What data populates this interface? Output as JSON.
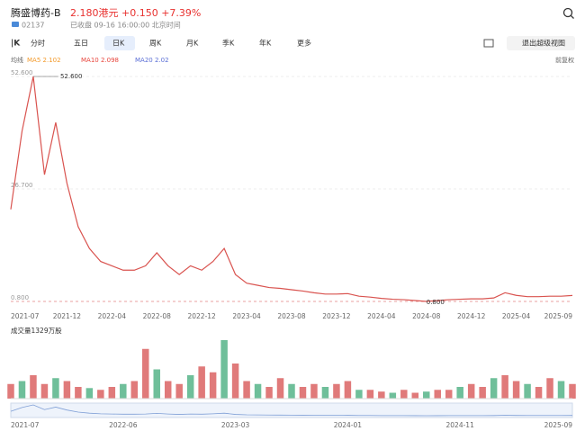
{
  "header": {
    "name": "腾盛博药-B",
    "quote": "2.180港元 +0.150 +7.39%",
    "code": "02137",
    "status": "已收盘 09-16 16:00:00 北京时间"
  },
  "tabs": [
    "分时",
    "五日",
    "日K",
    "周K",
    "月K",
    "季K",
    "年K",
    "更多"
  ],
  "exit_view": "退出超级视图",
  "ma_legend": {
    "label": "均线",
    "items": [
      {
        "text": "MA5 2.102",
        "color": "#f39a2b"
      },
      {
        "text": "MA10 2.098",
        "color": "#e8453c"
      },
      {
        "text": "MA20 2.02",
        "color": "#5b6fd6"
      }
    ]
  },
  "adjust": "前复权",
  "navigator": {
    "labels": [
      "2021-07",
      "2022-06",
      "2023-03",
      "2024-01",
      "2024-11",
      "2025-09"
    ]
  },
  "chart_data": [
    {
      "type": "line",
      "color": "#d9534f",
      "categories": [
        "2021-07",
        null,
        null,
        null,
        null,
        "2021-12",
        null,
        null,
        null,
        "2022-04",
        null,
        null,
        null,
        "2022-08",
        null,
        null,
        null,
        "2022-12",
        null,
        null,
        null,
        "2023-04",
        null,
        null,
        null,
        "2023-08",
        null,
        null,
        null,
        "2023-12",
        null,
        null,
        null,
        "2024-04",
        null,
        null,
        null,
        "2024-08",
        null,
        null,
        null,
        "2024-12",
        null,
        null,
        null,
        "2025-04",
        null,
        null,
        null,
        null,
        "2025-09"
      ],
      "values": [
        22,
        40,
        52.6,
        30,
        42,
        28,
        18,
        13,
        10,
        9,
        8,
        8,
        9,
        12,
        9,
        7,
        9,
        8,
        10,
        13,
        7,
        5,
        4.5,
        4,
        3.8,
        3.5,
        3.2,
        2.8,
        2.5,
        2.5,
        2.6,
        2,
        1.8,
        1.5,
        1.3,
        1.2,
        1.0,
        0.8,
        1.0,
        1.2,
        1.3,
        1.4,
        1.4,
        1.6,
        2.8,
        2.2,
        1.9,
        1.9,
        2.0,
        2.0,
        2.18
      ],
      "ylim": [
        0.8,
        52.6
      ],
      "yticks": [
        {
          "value": 52.6,
          "label": "52.600"
        },
        {
          "value": 26.7,
          "label": "26.700"
        },
        {
          "value": 0.8,
          "label": "0.800"
        }
      ],
      "high": {
        "value": 52.6,
        "label": "52.600"
      },
      "low": {
        "value": 0.8,
        "label": "0.800"
      }
    },
    {
      "type": "bar",
      "title": "成交量1329万股",
      "color": "#e07a7a",
      "categories": [
        "2021-07",
        null,
        null,
        null,
        null,
        "2021-12",
        null,
        null,
        null,
        "2022-04",
        null,
        null,
        null,
        "2022-08",
        null,
        null,
        null,
        "2022-12",
        null,
        null,
        null,
        "2023-04",
        null,
        null,
        null,
        "2023-08",
        null,
        null,
        null,
        "2023-12",
        null,
        null,
        null,
        "2024-04",
        null,
        null,
        null,
        "2024-08",
        null,
        null,
        null,
        "2024-12",
        null,
        null,
        null,
        "2025-04",
        null,
        null,
        null,
        null,
        "2025-09"
      ],
      "values": [
        2500,
        3000,
        4000,
        2500,
        3500,
        3000,
        2000,
        1800,
        1500,
        2000,
        2500,
        3000,
        8500,
        5000,
        3000,
        2500,
        4000,
        5500,
        4500,
        10000,
        6000,
        3000,
        2500,
        2000,
        3500,
        2500,
        2000,
        2500,
        2000,
        2500,
        3000,
        1500,
        1500,
        1200,
        1000,
        1500,
        1000,
        1200,
        1500,
        1500,
        2000,
        2500,
        2000,
        3500,
        4000,
        3000,
        2500,
        2000,
        3500,
        3000,
        2500
      ],
      "ylim": [
        0,
        10000
      ]
    }
  ]
}
